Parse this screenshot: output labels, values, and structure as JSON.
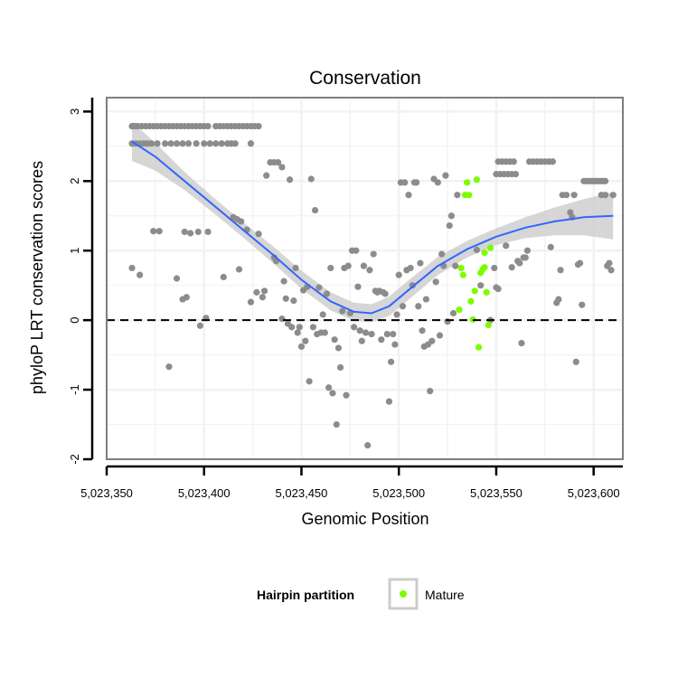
{
  "chart_data": {
    "type": "scatter",
    "title": "Conservation",
    "xlabel": "Genomic Position",
    "ylabel": "phyloP LRT conservation scores",
    "xlim": [
      5023350,
      5023615
    ],
    "ylim": [
      -2,
      3.2
    ],
    "x_ticks": [
      5023350,
      5023400,
      5023450,
      5023500,
      5023550,
      5023600
    ],
    "x_tick_labels": [
      "5,023,350",
      "5,023,400",
      "5,023,450",
      "5,023,500",
      "5,023,550",
      "5,023,600"
    ],
    "y_ticks": [
      -2,
      -1,
      0,
      1,
      2,
      3
    ],
    "y_tick_labels": [
      "-2",
      "-1",
      "0",
      "1",
      "2",
      "3"
    ],
    "grid": true,
    "reference_line": {
      "y": 0,
      "style": "dashed"
    },
    "legend": {
      "title": "Hairpin partition",
      "position": "bottom",
      "entries": [
        "Mature"
      ]
    },
    "colors": {
      "points": "#8c8c8c",
      "mature": "#7cfc00",
      "smooth": "#3366ff",
      "band": "#cccccc",
      "panel_bg": "#ffffff",
      "grid": "#f2f2f2"
    },
    "smooth": {
      "x": [
        5023363,
        5023375,
        5023390,
        5023405,
        5023420,
        5023435,
        5023450,
        5023465,
        5023477,
        5023486,
        5023495,
        5023507,
        5023520,
        5023535,
        5023550,
        5023565,
        5023580,
        5023595,
        5023610
      ],
      "y": [
        2.57,
        2.35,
        2.0,
        1.65,
        1.3,
        0.95,
        0.58,
        0.27,
        0.12,
        0.1,
        0.2,
        0.48,
        0.78,
        1.02,
        1.2,
        1.33,
        1.42,
        1.48,
        1.5
      ],
      "band": [
        0.28,
        0.2,
        0.13,
        0.11,
        0.11,
        0.12,
        0.13,
        0.13,
        0.13,
        0.13,
        0.14,
        0.14,
        0.13,
        0.12,
        0.12,
        0.15,
        0.2,
        0.26,
        0.34
      ]
    },
    "series": [
      {
        "name": "Mature",
        "points": [
          [
            5023531,
            0.15
          ],
          [
            5023532,
            0.75
          ],
          [
            5023533,
            0.65
          ],
          [
            5023534,
            1.8
          ],
          [
            5023535,
            1.98
          ],
          [
            5023536,
            1.8
          ],
          [
            5023537,
            0.27
          ],
          [
            5023538,
            0.01
          ],
          [
            5023539,
            0.42
          ],
          [
            5023540,
            2.02
          ],
          [
            5023541,
            -0.39
          ],
          [
            5023542,
            0.68
          ],
          [
            5023543,
            0.73
          ],
          [
            5023544,
            0.97
          ],
          [
            5023545,
            0.4
          ],
          [
            5023546,
            -0.07
          ],
          [
            5023547,
            1.04
          ],
          [
            5023544,
            0.76
          ]
        ]
      },
      {
        "points": [
          [
            5023363,
            2.79
          ],
          [
            5023364,
            2.79
          ],
          [
            5023365,
            2.79
          ],
          [
            5023366,
            2.79
          ],
          [
            5023368,
            2.79
          ],
          [
            5023370,
            2.79
          ],
          [
            5023372,
            2.79
          ],
          [
            5023374,
            2.79
          ],
          [
            5023376,
            2.79
          ],
          [
            5023378,
            2.79
          ],
          [
            5023380,
            2.79
          ],
          [
            5023382,
            2.79
          ],
          [
            5023384,
            2.79
          ],
          [
            5023386,
            2.79
          ],
          [
            5023388,
            2.79
          ],
          [
            5023390,
            2.79
          ],
          [
            5023392,
            2.79
          ],
          [
            5023394,
            2.79
          ],
          [
            5023396,
            2.79
          ],
          [
            5023398,
            2.79
          ],
          [
            5023400,
            2.79
          ],
          [
            5023402,
            2.79
          ],
          [
            5023406,
            2.79
          ],
          [
            5023408,
            2.79
          ],
          [
            5023410,
            2.79
          ],
          [
            5023412,
            2.79
          ],
          [
            5023414,
            2.79
          ],
          [
            5023416,
            2.79
          ],
          [
            5023418,
            2.79
          ],
          [
            5023420,
            2.79
          ],
          [
            5023422,
            2.79
          ],
          [
            5023424,
            2.79
          ],
          [
            5023426,
            2.79
          ],
          [
            5023428,
            2.79
          ],
          [
            5023363,
            2.54
          ],
          [
            5023365,
            2.54
          ],
          [
            5023367,
            2.54
          ],
          [
            5023369,
            2.54
          ],
          [
            5023371,
            2.54
          ],
          [
            5023373,
            2.54
          ],
          [
            5023376,
            2.54
          ],
          [
            5023380,
            2.54
          ],
          [
            5023383,
            2.54
          ],
          [
            5023386,
            2.54
          ],
          [
            5023389,
            2.54
          ],
          [
            5023392,
            2.54
          ],
          [
            5023396,
            2.54
          ],
          [
            5023400,
            2.54
          ],
          [
            5023403,
            2.54
          ],
          [
            5023406,
            2.54
          ],
          [
            5023409,
            2.54
          ],
          [
            5023412,
            2.54
          ],
          [
            5023414,
            2.54
          ],
          [
            5023416,
            2.54
          ],
          [
            5023424,
            2.54
          ],
          [
            5023374,
            1.28
          ],
          [
            5023377,
            1.28
          ],
          [
            5023390,
            1.27
          ],
          [
            5023393,
            1.25
          ],
          [
            5023397,
            1.27
          ],
          [
            5023402,
            1.27
          ],
          [
            5023363,
            0.75
          ],
          [
            5023367,
            0.65
          ],
          [
            5023382,
            -0.67
          ],
          [
            5023386,
            0.6
          ],
          [
            5023389,
            0.3
          ],
          [
            5023391,
            0.33
          ],
          [
            5023398,
            -0.08
          ],
          [
            5023401,
            0.03
          ],
          [
            5023410,
            0.62
          ],
          [
            5023415,
            1.48
          ],
          [
            5023417,
            1.45
          ],
          [
            5023418,
            0.73
          ],
          [
            5023419,
            1.42
          ],
          [
            5023422,
            1.3
          ],
          [
            5023424,
            0.26
          ],
          [
            5023427,
            0.4
          ],
          [
            5023428,
            1.24
          ],
          [
            5023430,
            0.33
          ],
          [
            5023431,
            0.42
          ],
          [
            5023432,
            2.08
          ],
          [
            5023434,
            2.27
          ],
          [
            5023436,
            2.27
          ],
          [
            5023438,
            2.27
          ],
          [
            5023440,
            2.2
          ],
          [
            5023436,
            0.9
          ],
          [
            5023437,
            0.85
          ],
          [
            5023440,
            0.02
          ],
          [
            5023441,
            0.56
          ],
          [
            5023442,
            0.31
          ],
          [
            5023443,
            -0.05
          ],
          [
            5023444,
            2.02
          ],
          [
            5023445,
            -0.1
          ],
          [
            5023446,
            0.28
          ],
          [
            5023447,
            0.75
          ],
          [
            5023448,
            -0.18
          ],
          [
            5023449,
            -0.1
          ],
          [
            5023450,
            -0.38
          ],
          [
            5023451,
            0.43
          ],
          [
            5023452,
            -0.3
          ],
          [
            5023453,
            0.48
          ],
          [
            5023454,
            -0.88
          ],
          [
            5023455,
            2.03
          ],
          [
            5023456,
            -0.1
          ],
          [
            5023457,
            1.58
          ],
          [
            5023458,
            -0.2
          ],
          [
            5023459,
            0.47
          ],
          [
            5023460,
            -0.18
          ],
          [
            5023461,
            0.08
          ],
          [
            5023462,
            -0.18
          ],
          [
            5023463,
            0.38
          ],
          [
            5023464,
            -0.97
          ],
          [
            5023465,
            0.75
          ],
          [
            5023466,
            -1.05
          ],
          [
            5023467,
            -0.28
          ],
          [
            5023468,
            -1.5
          ],
          [
            5023469,
            -0.4
          ],
          [
            5023470,
            -0.68
          ],
          [
            5023471,
            0.13
          ],
          [
            5023472,
            0.75
          ],
          [
            5023473,
            -1.08
          ],
          [
            5023474,
            0.78
          ],
          [
            5023475,
            0.1
          ],
          [
            5023476,
            1.0
          ],
          [
            5023477,
            -0.1
          ],
          [
            5023478,
            1.0
          ],
          [
            5023479,
            0.48
          ],
          [
            5023480,
            -0.15
          ],
          [
            5023481,
            -0.3
          ],
          [
            5023482,
            0.78
          ],
          [
            5023483,
            -0.18
          ],
          [
            5023484,
            -1.8
          ],
          [
            5023485,
            0.72
          ],
          [
            5023486,
            -0.2
          ],
          [
            5023487,
            0.95
          ],
          [
            5023488,
            0.42
          ],
          [
            5023489,
            0.4
          ],
          [
            5023490,
            0.42
          ],
          [
            5023491,
            -0.28
          ],
          [
            5023492,
            0.4
          ],
          [
            5023493,
            0.38
          ],
          [
            5023494,
            -0.2
          ],
          [
            5023495,
            -1.17
          ],
          [
            5023496,
            -0.6
          ],
          [
            5023497,
            -0.2
          ],
          [
            5023498,
            -0.35
          ],
          [
            5023499,
            0.08
          ],
          [
            5023500,
            0.65
          ],
          [
            5023501,
            1.98
          ],
          [
            5023502,
            0.2
          ],
          [
            5023503,
            1.98
          ],
          [
            5023504,
            0.72
          ],
          [
            5023505,
            1.8
          ],
          [
            5023506,
            0.75
          ],
          [
            5023507,
            0.5
          ],
          [
            5023508,
            1.98
          ],
          [
            5023509,
            1.98
          ],
          [
            5023510,
            0.2
          ],
          [
            5023511,
            0.82
          ],
          [
            5023512,
            -0.15
          ],
          [
            5023513,
            -0.38
          ],
          [
            5023514,
            0.3
          ],
          [
            5023515,
            -0.35
          ],
          [
            5023516,
            -1.02
          ],
          [
            5023517,
            -0.3
          ],
          [
            5023518,
            2.03
          ],
          [
            5023519,
            0.55
          ],
          [
            5023520,
            1.98
          ],
          [
            5023521,
            -0.22
          ],
          [
            5023522,
            0.95
          ],
          [
            5023523,
            0.78
          ],
          [
            5023524,
            2.08
          ],
          [
            5023525,
            -0.02
          ],
          [
            5023526,
            1.36
          ],
          [
            5023527,
            1.5
          ],
          [
            5023528,
            0.1
          ],
          [
            5023529,
            0.78
          ],
          [
            5023530,
            1.8
          ],
          [
            5023540,
            1.01
          ],
          [
            5023542,
            0.5
          ],
          [
            5023547,
            0.0
          ],
          [
            5023549,
            0.75
          ],
          [
            5023550,
            0.47
          ],
          [
            5023551,
            0.45
          ],
          [
            5023550,
            2.1
          ],
          [
            5023551,
            2.28
          ],
          [
            5023552,
            2.1
          ],
          [
            5023553,
            2.28
          ],
          [
            5023554,
            2.1
          ],
          [
            5023555,
            2.28
          ],
          [
            5023556,
            2.1
          ],
          [
            5023557,
            2.28
          ],
          [
            5023558,
            2.1
          ],
          [
            5023559,
            2.28
          ],
          [
            5023560,
            2.1
          ],
          [
            5023555,
            1.07
          ],
          [
            5023558,
            0.76
          ],
          [
            5023561,
            0.85
          ],
          [
            5023562,
            0.82
          ],
          [
            5023563,
            -0.33
          ],
          [
            5023564,
            0.9
          ],
          [
            5023565,
            0.9
          ],
          [
            5023566,
            1.0
          ],
          [
            5023567,
            2.28
          ],
          [
            5023569,
            2.28
          ],
          [
            5023571,
            2.28
          ],
          [
            5023573,
            2.28
          ],
          [
            5023575,
            2.28
          ],
          [
            5023577,
            2.28
          ],
          [
            5023579,
            2.28
          ],
          [
            5023578,
            1.05
          ],
          [
            5023581,
            0.25
          ],
          [
            5023582,
            0.3
          ],
          [
            5023583,
            0.72
          ],
          [
            5023584,
            1.8
          ],
          [
            5023586,
            1.8
          ],
          [
            5023588,
            1.55
          ],
          [
            5023589,
            1.48
          ],
          [
            5023590,
            1.8
          ],
          [
            5023591,
            -0.6
          ],
          [
            5023592,
            0.8
          ],
          [
            5023593,
            0.82
          ],
          [
            5023594,
            0.22
          ],
          [
            5023595,
            2.0
          ],
          [
            5023596,
            2.0
          ],
          [
            5023597,
            2.0
          ],
          [
            5023598,
            2.0
          ],
          [
            5023599,
            2.0
          ],
          [
            5023600,
            2.0
          ],
          [
            5023601,
            2.0
          ],
          [
            5023602,
            2.0
          ],
          [
            5023603,
            2.0
          ],
          [
            5023604,
            2.0
          ],
          [
            5023605,
            2.0
          ],
          [
            5023606,
            2.0
          ],
          [
            5023604,
            1.8
          ],
          [
            5023606,
            1.8
          ],
          [
            5023607,
            0.78
          ],
          [
            5023608,
            0.82
          ],
          [
            5023609,
            0.72
          ],
          [
            5023610,
            1.8
          ]
        ]
      }
    ]
  }
}
